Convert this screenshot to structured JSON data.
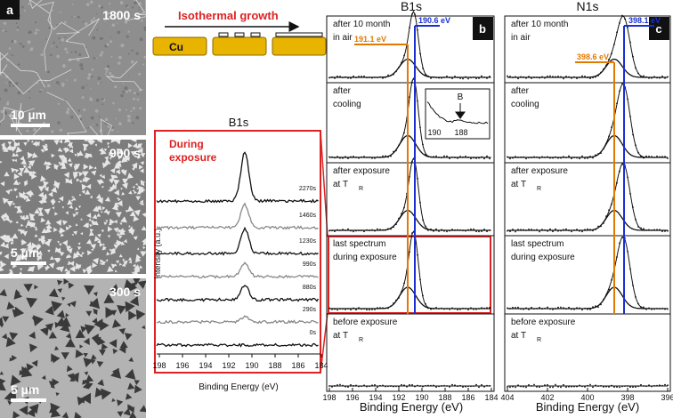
{
  "panel_a": {
    "label": "a",
    "images": [
      {
        "time": "1800 s",
        "scale": "10 µm"
      },
      {
        "time": "900 s",
        "scale": "5 µm"
      },
      {
        "time": "300 s",
        "scale": "5 µm"
      }
    ]
  },
  "schematic": {
    "title": "Isothermal growth",
    "substrate": "Cu"
  },
  "exposure_panel": {
    "title": "B1s",
    "heading": [
      "During",
      "exposure"
    ],
    "y_label": "Intensity (a.u.)",
    "x_label": "Binding Energy (eV)",
    "x_ticks": [
      "198",
      "196",
      "194",
      "192",
      "190",
      "188",
      "186",
      "184"
    ],
    "spectra": [
      "2270s",
      "1460s",
      "1230s",
      "990s",
      "880s",
      "290s",
      "0s"
    ]
  },
  "panel_b": {
    "label": "b",
    "title": "B1s",
    "peaks": [
      "191.1 eV",
      "190.6 eV"
    ],
    "rows": [
      {
        "lines": [
          "after 10 month",
          "in air"
        ]
      },
      {
        "lines": [
          "after",
          "cooling"
        ]
      },
      {
        "lines": [
          "after exposure",
          "at T"
        ],
        "subscript": "R"
      },
      {
        "lines": [
          "last spectrum",
          "during exposure"
        ]
      },
      {
        "lines": [
          "before exposure",
          "at T"
        ],
        "subscript": "R"
      }
    ],
    "inset": {
      "label": "B",
      "x_ticks": [
        "190",
        "188"
      ]
    },
    "x_ticks": [
      "198",
      "196",
      "194",
      "192",
      "190",
      "188",
      "186",
      "184"
    ],
    "x_label": "Binding Energy (eV)"
  },
  "panel_c": {
    "label": "c",
    "title": "N1s",
    "peaks": [
      "398.1 eV",
      "398.6 eV"
    ],
    "rows": [
      {
        "lines": [
          "after 10 month",
          "in air"
        ]
      },
      {
        "lines": [
          "after",
          "cooling"
        ]
      },
      {
        "lines": [
          "after exposure",
          "at T"
        ],
        "subscript": "R"
      },
      {
        "lines": [
          "last spectrum",
          "during exposure"
        ]
      },
      {
        "lines": [
          "before exposure",
          "at T"
        ],
        "subscript": "R"
      }
    ],
    "x_ticks": [
      "404",
      "402",
      "400",
      "398",
      "396"
    ],
    "x_label": "Binding Energy (eV)"
  }
}
